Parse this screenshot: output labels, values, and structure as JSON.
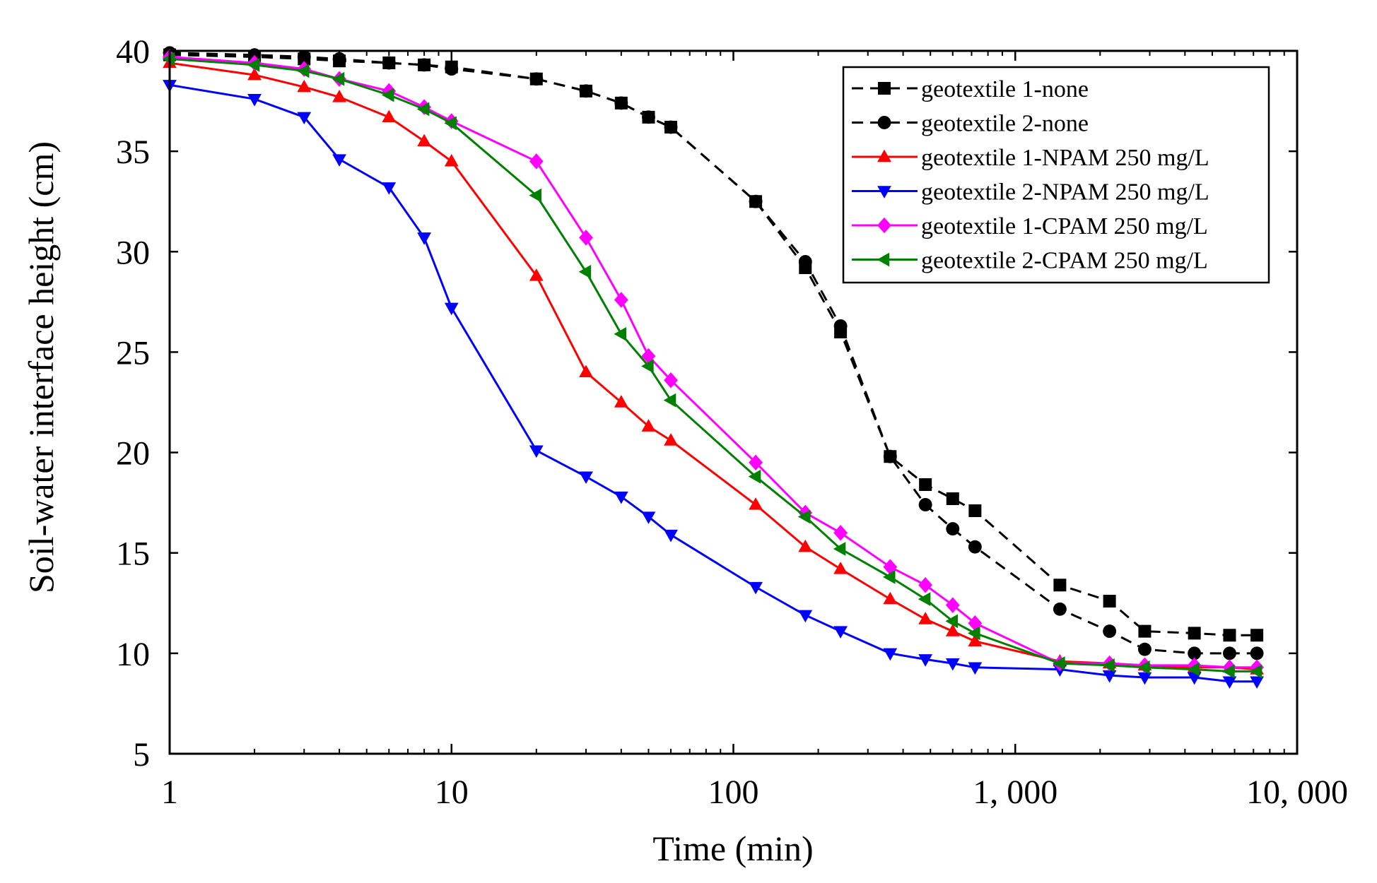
{
  "chart_data": {
    "type": "line",
    "title": "",
    "xlabel": "Time (min)",
    "ylabel": "Soil-water interface height (cm)",
    "xscale": "log",
    "xlim": [
      1,
      10000
    ],
    "ylim": [
      5,
      40
    ],
    "xticks": [
      1,
      10,
      100,
      1000,
      10000
    ],
    "xtick_labels": [
      "1",
      "10",
      "100",
      "1, 000",
      "10, 000"
    ],
    "yticks": [
      5,
      10,
      15,
      20,
      25,
      30,
      35,
      40
    ],
    "ytick_labels": [
      "5",
      "10",
      "15",
      "20",
      "25",
      "30",
      "35",
      "40"
    ],
    "legend_position": "top-right",
    "series": [
      {
        "name": "geotextile 1-none",
        "color": "#000000",
        "dash": true,
        "marker": "square",
        "x": [
          1,
          2,
          3,
          4,
          6,
          8,
          10,
          20,
          30,
          40,
          50,
          60,
          120,
          180,
          240,
          360,
          480,
          600,
          720,
          1440,
          2160,
          2880,
          4320,
          5760,
          7200
        ],
        "y": [
          39.8,
          39.7,
          39.6,
          39.5,
          39.4,
          39.3,
          39.2,
          38.6,
          38.0,
          37.4,
          36.7,
          36.2,
          32.5,
          29.2,
          26.0,
          19.8,
          18.4,
          17.7,
          17.1,
          13.4,
          12.6,
          11.1,
          11.0,
          10.9,
          10.9
        ]
      },
      {
        "name": "geotextile 2-none",
        "color": "#000000",
        "dash": true,
        "marker": "circle",
        "x": [
          1,
          2,
          3,
          4,
          6,
          8,
          10,
          20,
          30,
          40,
          50,
          60,
          120,
          180,
          240,
          360,
          480,
          600,
          720,
          1440,
          2160,
          2880,
          4320,
          5760,
          7200
        ],
        "y": [
          39.9,
          39.8,
          39.7,
          39.6,
          39.4,
          39.3,
          39.1,
          38.6,
          38.0,
          37.4,
          36.7,
          36.2,
          32.5,
          29.5,
          26.3,
          19.8,
          17.4,
          16.2,
          15.3,
          12.2,
          11.1,
          10.2,
          10.0,
          10.0,
          10.0
        ]
      },
      {
        "name": "geotextile 1-NPAM 250 mg/L",
        "color": "#ff0000",
        "dash": false,
        "marker": "triangle-up",
        "x": [
          1,
          2,
          3,
          4,
          6,
          8,
          10,
          20,
          30,
          40,
          50,
          60,
          120,
          180,
          240,
          360,
          480,
          600,
          720,
          1440,
          2160,
          2880,
          4320,
          5760,
          7200
        ],
        "y": [
          39.4,
          38.8,
          38.2,
          37.7,
          36.7,
          35.5,
          34.5,
          28.8,
          24.0,
          22.5,
          21.3,
          20.6,
          17.4,
          15.3,
          14.2,
          12.7,
          11.7,
          11.1,
          10.6,
          9.6,
          9.5,
          9.4,
          9.3,
          9.3,
          9.2
        ]
      },
      {
        "name": "geotextile 2-NPAM 250 mg/L",
        "color": "#0000ff",
        "dash": false,
        "marker": "triangle-down",
        "x": [
          1,
          2,
          3,
          4,
          6,
          8,
          10,
          20,
          30,
          40,
          50,
          60,
          120,
          180,
          240,
          360,
          480,
          600,
          720,
          1440,
          2160,
          2880,
          4320,
          5760,
          7200
        ],
        "y": [
          38.3,
          37.6,
          36.7,
          34.6,
          33.2,
          30.7,
          27.2,
          20.1,
          18.8,
          17.8,
          16.8,
          15.9,
          13.3,
          11.9,
          11.1,
          10.0,
          9.7,
          9.5,
          9.3,
          9.2,
          8.9,
          8.8,
          8.8,
          8.6,
          8.6
        ]
      },
      {
        "name": "geotextile 1-CPAM 250 mg/L",
        "color": "#ff00ff",
        "dash": false,
        "marker": "diamond",
        "x": [
          1,
          2,
          3,
          4,
          6,
          8,
          10,
          20,
          30,
          40,
          50,
          60,
          120,
          180,
          240,
          360,
          480,
          600,
          720,
          1440,
          2160,
          2880,
          4320,
          5760,
          7200
        ],
        "y": [
          39.7,
          39.4,
          39.1,
          38.6,
          38.0,
          37.2,
          36.5,
          34.5,
          30.7,
          27.6,
          24.8,
          23.6,
          19.5,
          17.0,
          16.0,
          14.3,
          13.4,
          12.4,
          11.5,
          9.5,
          9.5,
          9.4,
          9.4,
          9.3,
          9.3
        ]
      },
      {
        "name": "geotextile 2-CPAM 250 mg/L",
        "color": "#008000",
        "dash": false,
        "marker": "triangle-left",
        "x": [
          1,
          2,
          3,
          4,
          6,
          8,
          10,
          20,
          30,
          40,
          50,
          60,
          120,
          180,
          240,
          360,
          480,
          600,
          720,
          1440,
          2160,
          2880,
          4320,
          5760,
          7200
        ],
        "y": [
          39.6,
          39.3,
          39.0,
          38.6,
          37.8,
          37.1,
          36.4,
          32.8,
          29.0,
          25.9,
          24.3,
          22.6,
          18.8,
          16.8,
          15.2,
          13.8,
          12.7,
          11.6,
          11.0,
          9.5,
          9.4,
          9.3,
          9.2,
          9.1,
          9.1
        ]
      }
    ]
  }
}
